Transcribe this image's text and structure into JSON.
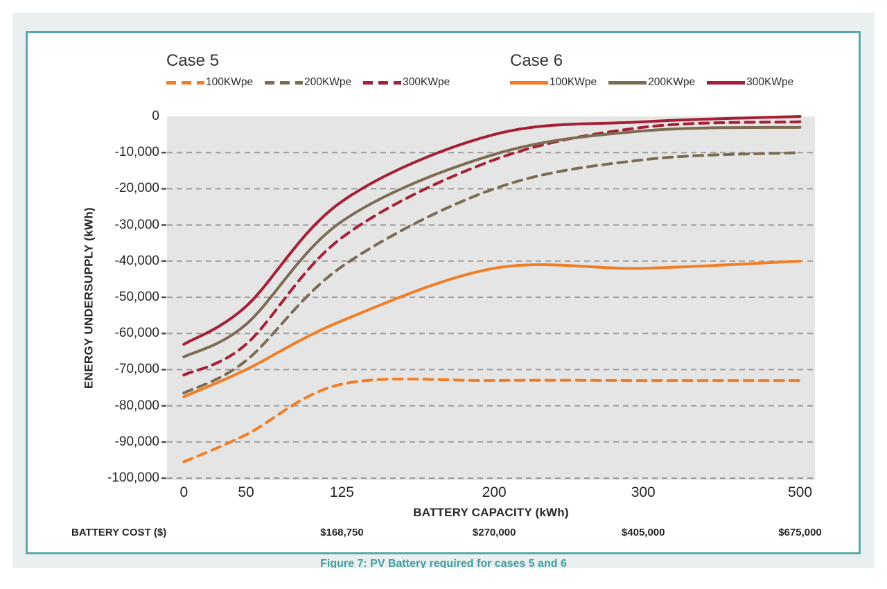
{
  "page": {
    "caption": "Figure 7: PV Battery required for cases 5 and 6"
  },
  "colors": {
    "accent_teal": "#5aa7ab",
    "caption_teal": "#3f9ea3",
    "plot_background": "#e5e5e5",
    "gridline": "#9b9b9b",
    "orange": "#f07e26",
    "brown": "#7d6b52",
    "dark_red": "#a32036"
  },
  "chart_data": {
    "type": "line",
    "ylabel": "ENERGY UNDERSUPPLY (kWh)",
    "xlabel": "BATTERY CAPACITY (kWh)",
    "ylim": [
      -100000,
      0
    ],
    "grid": "horizontal-dashed",
    "x_categories": [
      0,
      50,
      125,
      200,
      300,
      500
    ],
    "x_tick_labels": [
      "0",
      "50",
      "125",
      "200",
      "300",
      "500"
    ],
    "y_tick_labels": [
      "0",
      "-10,000",
      "-20,000",
      "-30,000",
      "-40,000",
      "-50,000",
      "-60,000",
      "-70,000",
      "-80,000",
      "-90,000",
      "-100,000"
    ],
    "battery_cost": {
      "label": "BATTERY COST ($)",
      "values": [
        {
          "capacity": 125,
          "cost": "$168,750"
        },
        {
          "capacity": 200,
          "cost": "$270,000"
        },
        {
          "capacity": 300,
          "cost": "$405,000"
        },
        {
          "capacity": 500,
          "cost": "$675,000"
        }
      ]
    },
    "groups": [
      {
        "name": "Case 5",
        "style": "dashed",
        "series": [
          {
            "label": "100KWpe",
            "color": "#f07e26",
            "values": [
              -95500,
              -88000,
              -74000,
              -73000,
              -73000,
              -73000
            ]
          },
          {
            "label": "200KWpe",
            "color": "#7d6b52",
            "values": [
              -76500,
              -67500,
              -41500,
              -20000,
              -12000,
              -10000
            ]
          },
          {
            "label": "300KWpe",
            "color": "#a32036",
            "values": [
              -71500,
              -63000,
              -33500,
              -12000,
              -3000,
              -1500
            ]
          }
        ]
      },
      {
        "name": "Case 6",
        "style": "solid",
        "series": [
          {
            "label": "100KWpe",
            "color": "#f07e26",
            "values": [
              -77500,
              -70000,
              -56500,
              -42000,
              -42000,
              -40000
            ]
          },
          {
            "label": "200KWpe",
            "color": "#7d6b52",
            "values": [
              -66500,
              -57500,
              -29000,
              -10500,
              -4000,
              -3000
            ]
          },
          {
            "label": "300KWpe",
            "color": "#a32036",
            "values": [
              -63000,
              -52500,
              -23500,
              -5000,
              -1500,
              0
            ]
          }
        ]
      }
    ]
  }
}
